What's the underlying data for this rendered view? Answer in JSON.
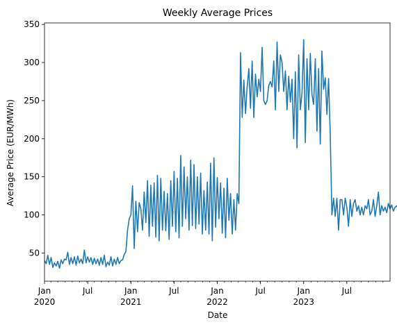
{
  "chart_data": {
    "type": "line",
    "title": "Weekly Average Prices",
    "xlabel": "Date",
    "ylabel": "Average Price (EUR/MWh)",
    "x_range": [
      "2020-01-05",
      "2023-12-31"
    ],
    "ylim": [
      13,
      352
    ],
    "grid": false,
    "legend": "none",
    "series_color": "#1f77b4",
    "y_ticks": [
      50,
      100,
      150,
      200,
      250,
      300,
      350
    ],
    "x_major_ticks": [
      {
        "date": "2020-01-05",
        "label": "Jan",
        "year": "2020"
      },
      {
        "date": "2020-07-05",
        "label": "Jul",
        "year": ""
      },
      {
        "date": "2021-01-03",
        "label": "Jan",
        "year": "2021"
      },
      {
        "date": "2021-07-04",
        "label": "Jul",
        "year": ""
      },
      {
        "date": "2022-01-02",
        "label": "Jan",
        "year": "2022"
      },
      {
        "date": "2022-07-03",
        "label": "Jul",
        "year": ""
      },
      {
        "date": "2023-01-01",
        "label": "Jan",
        "year": "2023"
      },
      {
        "date": "2023-07-02",
        "label": "Jul",
        "year": ""
      }
    ],
    "series": [
      {
        "start_date": "2020-01-05",
        "frequency": "weekly",
        "values": [
          40,
          36,
          47,
          35,
          44,
          31,
          37,
          33,
          39,
          30,
          41,
          36,
          42,
          41,
          51,
          35,
          44,
          36,
          45,
          34,
          46,
          37,
          42,
          36,
          54,
          37,
          45,
          38,
          44,
          35,
          43,
          36,
          42,
          34,
          44,
          35,
          47,
          32,
          38,
          34,
          45,
          33,
          42,
          35,
          44,
          36,
          40,
          41,
          48,
          52,
          80,
          95,
          100,
          138,
          56,
          118,
          78,
          116,
          108,
          80,
          130,
          90,
          145,
          72,
          139,
          85,
          142,
          71,
          152,
          66,
          148,
          80,
          131,
          79,
          128,
          68,
          145,
          85,
          157,
          78,
          148,
          70,
          178,
          85,
          163,
          95,
          150,
          80,
          172,
          86,
          166,
          82,
          150,
          88,
          155,
          75,
          132,
          80,
          143,
          75,
          168,
          66,
          175,
          84,
          149,
          95,
          142,
          76,
          135,
          70,
          148,
          93,
          128,
          75,
          120,
          80,
          128,
          115,
          313,
          228,
          277,
          233,
          268,
          292,
          240,
          302,
          228,
          285,
          255,
          278,
          262,
          320,
          250,
          245,
          250,
          270,
          275,
          268,
          302,
          238,
          327,
          262,
          310,
          300,
          262,
          289,
          238,
          282,
          248,
          278,
          200,
          288,
          188,
          310,
          238,
          260,
          330,
          195,
          305,
          238,
          312,
          258,
          245,
          305,
          210,
          292,
          193,
          315,
          265,
          280,
          232,
          279,
          206,
          100,
          122,
          98,
          122,
          80,
          120,
          120,
          100,
          122,
          110,
          85,
          120,
          98,
          115,
          120,
          105,
          112,
          100,
          110,
          100,
          112,
          108,
          120,
          100,
          105,
          120,
          98,
          112,
          130,
          100,
          112,
          105,
          110,
          103,
          115,
          108,
          113,
          105,
          110,
          112,
          108,
          115,
          110,
          100,
          107,
          115,
          110,
          112,
          98,
          100,
          113,
          103,
          108,
          106,
          110,
          103,
          108,
          100,
          98,
          100
        ]
      }
    ]
  }
}
